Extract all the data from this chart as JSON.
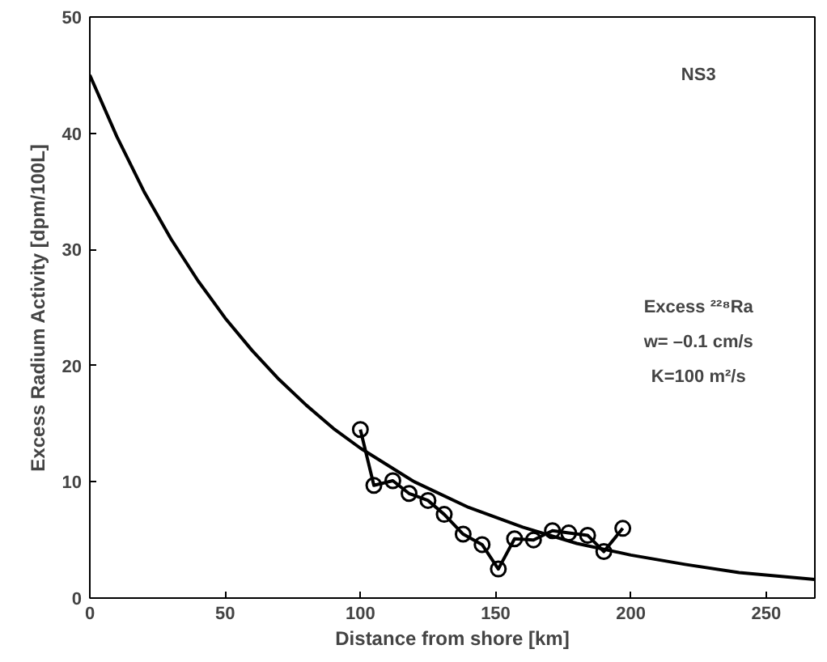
{
  "chart_data": {
    "type": "line",
    "xlabel": "Distance from shore [km]",
    "ylabel": "Excess Radium Activity [dpm/100L]",
    "xlim": [
      0,
      268
    ],
    "ylim": [
      0,
      50
    ],
    "xticks": [
      0,
      50,
      100,
      150,
      200,
      250
    ],
    "yticks": [
      0,
      10,
      20,
      30,
      40,
      50
    ],
    "grid": false,
    "series": [
      {
        "color": "#000000",
        "marker": "circle",
        "x": [
          100,
          105,
          112,
          118,
          125,
          131,
          138,
          145,
          151,
          157,
          164,
          171,
          177,
          184,
          190,
          197
        ],
        "values": [
          14.5,
          9.7,
          10.1,
          9.0,
          8.4,
          7.2,
          5.5,
          4.6,
          2.5,
          5.1,
          5.0,
          5.8,
          5.6,
          5.4,
          4.0,
          6.0
        ]
      },
      {
        "color": "#000000",
        "marker": "none",
        "x": [
          0,
          10,
          20,
          30,
          40,
          50,
          60,
          70,
          80,
          90,
          100,
          120,
          140,
          160,
          180,
          200,
          220,
          240,
          268
        ],
        "values": [
          45,
          39.7,
          35.0,
          30.9,
          27.3,
          24.1,
          21.3,
          18.8,
          16.6,
          14.6,
          12.9,
          10.0,
          7.8,
          6.1,
          4.7,
          3.7,
          2.9,
          2.2,
          1.6
        ]
      }
    ],
    "annotations": [
      "NS3",
      "Excess ²²⁸Ra",
      "w= –0.1 cm/s",
      "K=100 m²/s"
    ]
  }
}
